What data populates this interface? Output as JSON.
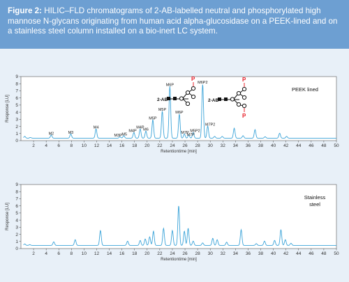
{
  "caption": {
    "label": "Figure 2:",
    "text": " HILIC–FLD chromatograms of 2-AB-labelled neutral and phosphorylated high mannose N-glycans originating from human acid alpha-glucosidase on a PEEK-lined and on a stainless steel column installed on a bio-inert LC system."
  },
  "colors": {
    "header": "#6d9fd2",
    "panel": "#e8f0f8",
    "trace": "#3aa3d8",
    "phosphate": "#e8202a"
  },
  "structures": {
    "label": "2-AB",
    "phosphate": "P"
  },
  "chart_data": [
    {
      "type": "line",
      "panel_label": "PEEK  lined",
      "xlabel": "Retentiontime [min]",
      "ylabel": "Response [LU]",
      "xlim": [
        0,
        50
      ],
      "ylim": [
        0,
        9
      ],
      "xticks": [
        2,
        4,
        6,
        8,
        10,
        12,
        14,
        16,
        18,
        20,
        22,
        24,
        26,
        28,
        30,
        32,
        34,
        36,
        38,
        40,
        42,
        44,
        46,
        48,
        50
      ],
      "yticks": [
        0,
        1,
        2,
        3,
        4,
        5,
        6,
        7,
        8,
        9
      ],
      "baseline": 0.35,
      "peaks": [
        {
          "x": 0.6,
          "y": 0.25
        },
        {
          "x": 1.5,
          "y": 0.1
        },
        {
          "x": 4.8,
          "y": 0.45
        },
        {
          "x": 7.9,
          "y": 0.6
        },
        {
          "x": 11.9,
          "y": 1.3
        },
        {
          "x": 15.7,
          "y": 0.2
        },
        {
          "x": 16.3,
          "y": 0.35
        },
        {
          "x": 17.9,
          "y": 0.8
        },
        {
          "x": 18.9,
          "y": 1.3
        },
        {
          "x": 19.8,
          "y": 1.0
        },
        {
          "x": 20.9,
          "y": 2.6
        },
        {
          "x": 22.4,
          "y": 3.8
        },
        {
          "x": 23.6,
          "y": 7.3
        },
        {
          "x": 25.1,
          "y": 3.4
        },
        {
          "x": 25.9,
          "y": 0.6
        },
        {
          "x": 26.6,
          "y": 0.45
        },
        {
          "x": 27.3,
          "y": 0.8
        },
        {
          "x": 28.8,
          "y": 7.6
        },
        {
          "x": 29.6,
          "y": 1.7
        },
        {
          "x": 30.7,
          "y": 0.25
        },
        {
          "x": 31.9,
          "y": 0.25
        },
        {
          "x": 33.8,
          "y": 1.4
        },
        {
          "x": 35.2,
          "y": 0.35
        },
        {
          "x": 37.1,
          "y": 1.2
        },
        {
          "x": 38.7,
          "y": 0.2
        },
        {
          "x": 41.0,
          "y": 0.7
        },
        {
          "x": 42.1,
          "y": 0.25
        }
      ],
      "annotations": [
        {
          "text": "M2",
          "x": 4.8,
          "y": 0.85
        },
        {
          "text": "M3",
          "x": 7.9,
          "y": 1.0
        },
        {
          "text": "M4",
          "x": 11.9,
          "y": 1.7
        },
        {
          "text": "M3P",
          "x": 15.4,
          "y": 0.6
        },
        {
          "text": "M5",
          "x": 16.4,
          "y": 0.75
        },
        {
          "text": "M4P",
          "x": 17.7,
          "y": 1.2
        },
        {
          "text": "M4P",
          "x": 18.9,
          "y": 1.7
        },
        {
          "text": "M6",
          "x": 19.8,
          "y": 1.4
        },
        {
          "text": "M5P",
          "x": 20.9,
          "y": 3.0
        },
        {
          "text": "M5P",
          "x": 22.4,
          "y": 4.2
        },
        {
          "text": "M6P",
          "x": 23.6,
          "y": 7.7
        },
        {
          "text": "M6P",
          "x": 25.1,
          "y": 3.8
        },
        {
          "text": "M7P",
          "x": 26.0,
          "y": 1.0
        },
        {
          "text": "M7P",
          "x": 26.9,
          "y": 0.7
        },
        {
          "text": "M5P2",
          "x": 27.6,
          "y": 1.2
        },
        {
          "text": "M6P2",
          "x": 28.8,
          "y": 8.0
        },
        {
          "text": "M7P2",
          "x": 30.0,
          "y": 2.1
        }
      ]
    },
    {
      "type": "line",
      "panel_label": "Stainless\nsteel",
      "xlabel": "Retentiontime [min]",
      "ylabel": "Response [LU]",
      "xlim": [
        0,
        50
      ],
      "ylim": [
        0,
        9
      ],
      "xticks": [
        2,
        4,
        6,
        8,
        10,
        12,
        14,
        16,
        18,
        20,
        22,
        24,
        26,
        28,
        30,
        32,
        34,
        36,
        38,
        40,
        42,
        44,
        46,
        48,
        50
      ],
      "yticks": [
        0,
        1,
        2,
        3,
        4,
        5,
        6,
        7,
        8,
        9
      ],
      "baseline": 0.45,
      "peaks": [
        {
          "x": 0.6,
          "y": 0.2
        },
        {
          "x": 1.4,
          "y": 0.1
        },
        {
          "x": 5.2,
          "y": 0.5
        },
        {
          "x": 8.6,
          "y": 0.8
        },
        {
          "x": 12.6,
          "y": 2.1
        },
        {
          "x": 16.9,
          "y": 0.6
        },
        {
          "x": 18.9,
          "y": 0.7
        },
        {
          "x": 19.7,
          "y": 0.9
        },
        {
          "x": 20.4,
          "y": 1.2
        },
        {
          "x": 21.0,
          "y": 2.0
        },
        {
          "x": 22.6,
          "y": 2.4
        },
        {
          "x": 24.0,
          "y": 2.1
        },
        {
          "x": 25.0,
          "y": 5.6
        },
        {
          "x": 25.9,
          "y": 2.0
        },
        {
          "x": 26.5,
          "y": 2.4
        },
        {
          "x": 27.3,
          "y": 0.6
        },
        {
          "x": 28.8,
          "y": 0.35
        },
        {
          "x": 30.4,
          "y": 1.0
        },
        {
          "x": 31.1,
          "y": 0.8
        },
        {
          "x": 32.6,
          "y": 0.45
        },
        {
          "x": 34.9,
          "y": 2.2
        },
        {
          "x": 37.3,
          "y": 0.25
        },
        {
          "x": 38.6,
          "y": 0.6
        },
        {
          "x": 40.2,
          "y": 0.7
        },
        {
          "x": 41.2,
          "y": 2.2
        },
        {
          "x": 41.9,
          "y": 0.8
        },
        {
          "x": 42.8,
          "y": 0.3
        }
      ]
    }
  ]
}
